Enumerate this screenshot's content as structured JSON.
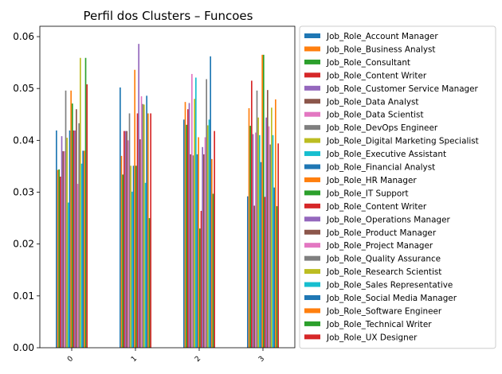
{
  "chart_data": {
    "type": "bar",
    "title": "Perfil dos Clusters – Funcoes",
    "xlabel": "",
    "ylabel": "",
    "ylim": [
      0,
      0.062
    ],
    "yticks": [
      0.0,
      0.01,
      0.02,
      0.03,
      0.04,
      0.05,
      0.06
    ],
    "ytick_labels": [
      "0.00",
      "0.01",
      "0.02",
      "0.03",
      "0.04",
      "0.05",
      "0.06"
    ],
    "categories": [
      "0",
      "1",
      "2",
      "3"
    ],
    "legend_position": "outside-right",
    "grid": false,
    "series": [
      {
        "name": "Job_Role_Account Manager",
        "color": "#1f77b4",
        "values": [
          0.0419,
          0.0502,
          0.044,
          0.0292
        ]
      },
      {
        "name": "Job_Role_Business Analyst",
        "color": "#ff7f0e",
        "values": [
          0.0343,
          0.037,
          0.0474,
          0.0462
        ]
      },
      {
        "name": "Job_Role_Consultant",
        "color": "#2ca02c",
        "values": [
          0.0344,
          0.0334,
          0.043,
          0.0428
        ]
      },
      {
        "name": "Job_Role_Content Writer",
        "color": "#d62728",
        "values": [
          0.033,
          0.0418,
          0.046,
          0.0515
        ]
      },
      {
        "name": "Job_Role_Customer Service Manager",
        "color": "#9467bd",
        "values": [
          0.0408,
          0.0418,
          0.0472,
          0.0412
        ]
      },
      {
        "name": "Job_Role_Data Analyst",
        "color": "#8c564b",
        "values": [
          0.0379,
          0.0418,
          0.0373,
          0.0274
        ]
      },
      {
        "name": "Job_Role_Data Scientist",
        "color": "#e377c2",
        "values": [
          0.0379,
          0.04,
          0.0528,
          0.0415
        ]
      },
      {
        "name": "Job_Role_DevOps Engineer",
        "color": "#7f7f7f",
        "values": [
          0.0496,
          0.0452,
          0.0371,
          0.0496
        ]
      },
      {
        "name": "Job_Role_Digital Marketing Specialist",
        "color": "#bcbd22",
        "values": [
          0.0405,
          0.0351,
          0.048,
          0.0444
        ]
      },
      {
        "name": "Job_Role_Executive Assistant",
        "color": "#17becf",
        "values": [
          0.028,
          0.0301,
          0.0521,
          0.041
        ]
      },
      {
        "name": "Job_Role_Financial Analyst",
        "color": "#1f77b4",
        "values": [
          0.0419,
          0.0351,
          0.0373,
          0.0358
        ]
      },
      {
        "name": "Job_Role_HR Manager",
        "color": "#ff7f0e",
        "values": [
          0.0496,
          0.0536,
          0.0406,
          0.0565
        ]
      },
      {
        "name": "Job_Role_IT Support",
        "color": "#2ca02c",
        "values": [
          0.0471,
          0.0351,
          0.023,
          0.0565
        ]
      },
      {
        "name": "Job_Role_Content Writer",
        "color": "#d62728",
        "values": [
          0.0419,
          0.0452,
          0.0264,
          0.0291
        ]
      },
      {
        "name": "Job_Role_Operations Manager",
        "color": "#9467bd",
        "values": [
          0.0419,
          0.0586,
          0.0387,
          0.0444
        ]
      },
      {
        "name": "Job_Role_Product Manager",
        "color": "#8c564b",
        "values": [
          0.046,
          0.0402,
          0.0373,
          0.0497
        ]
      },
      {
        "name": "Job_Role_Project Manager",
        "color": "#e377c2",
        "values": [
          0.0316,
          0.0485,
          0.0406,
          0.0427
        ]
      },
      {
        "name": "Job_Role_Quality Assurance",
        "color": "#7f7f7f",
        "values": [
          0.0433,
          0.047,
          0.0518,
          0.0392
        ]
      },
      {
        "name": "Job_Role_Research Scientist",
        "color": "#bcbd22",
        "values": [
          0.0559,
          0.0469,
          0.0429,
          0.0463
        ]
      },
      {
        "name": "Job_Role_Sales Representative",
        "color": "#17becf",
        "values": [
          0.0355,
          0.0318,
          0.044,
          0.041
        ]
      },
      {
        "name": "Job_Role_Social Media Manager",
        "color": "#1f77b4",
        "values": [
          0.038,
          0.0486,
          0.0562,
          0.0309
        ]
      },
      {
        "name": "Job_Role_Software Engineer",
        "color": "#ff7f0e",
        "values": [
          0.038,
          0.0452,
          0.0364,
          0.0479
        ]
      },
      {
        "name": "Job_Role_Technical Writer",
        "color": "#2ca02c",
        "values": [
          0.0559,
          0.025,
          0.0297,
          0.0273
        ]
      },
      {
        "name": "Job_Role_UX Designer",
        "color": "#d62728",
        "values": [
          0.0508,
          0.0452,
          0.0418,
          0.0394
        ]
      }
    ]
  }
}
